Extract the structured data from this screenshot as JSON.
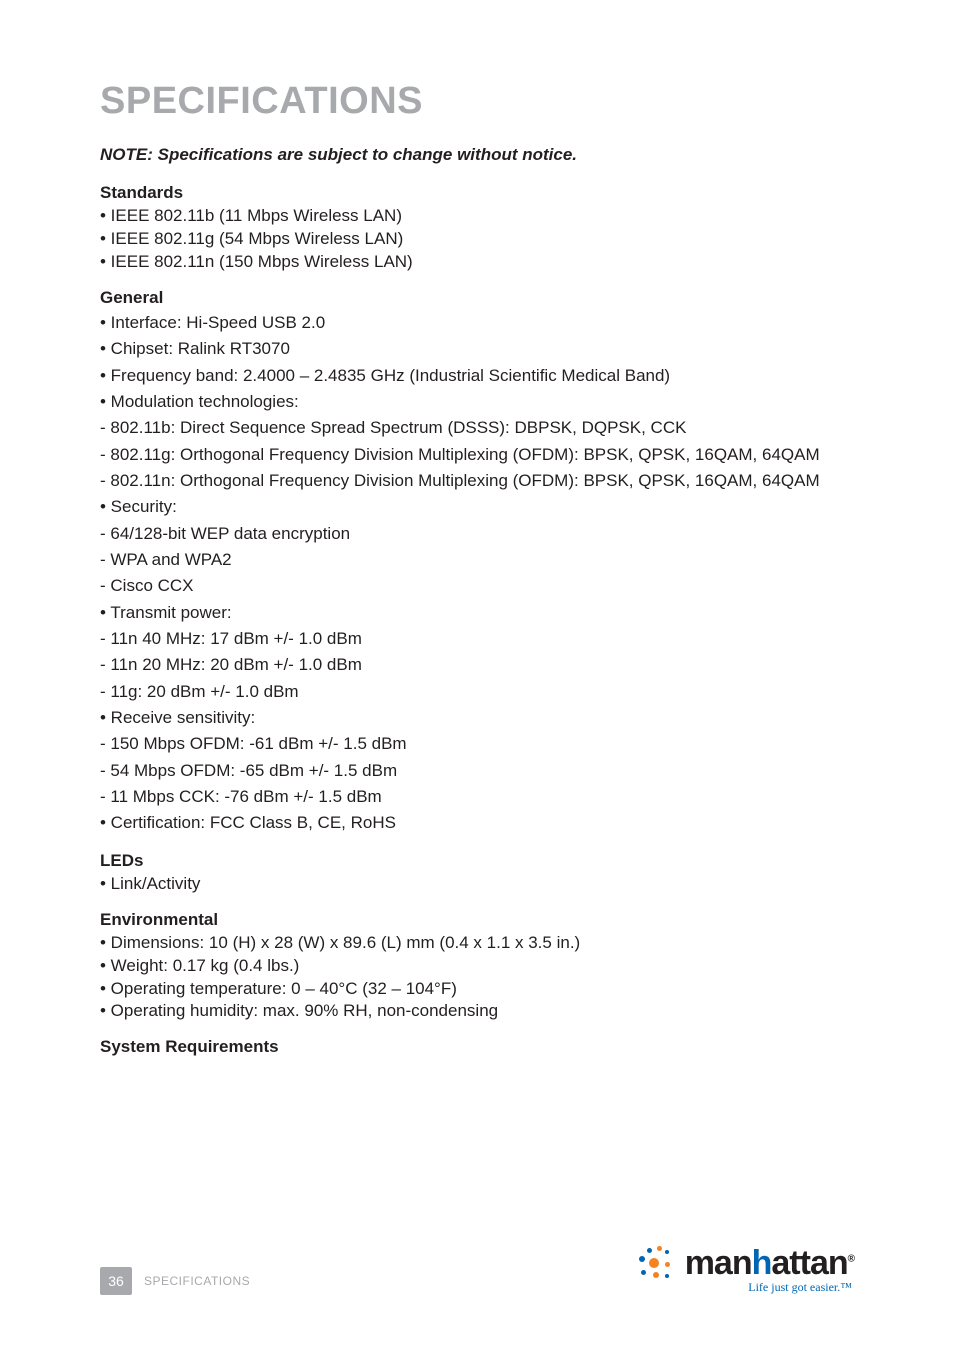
{
  "title": "SPECIFICATIONS",
  "note": "NOTE: Specifications are subject to change without notice.",
  "sections": {
    "standards": {
      "heading": "Standards",
      "lines": [
        "• IEEE 802.11b (11 Mbps Wireless LAN)",
        "• IEEE 802.11g (54 Mbps Wireless LAN)",
        "• IEEE 802.11n (150 Mbps Wireless LAN)"
      ]
    },
    "general": {
      "heading": "General",
      "lines": [
        "• Interface: Hi-Speed USB 2.0",
        "• Chipset: Ralink RT3070",
        "• Frequency band: 2.4000 – 2.4835 GHz (Industrial Scientific Medical Band)",
        "• Modulation technologies:",
        "- 802.11b: Direct Sequence Spread Spectrum (DSSS): DBPSK, DQPSK, CCK",
        "- 802.11g: Orthogonal Frequency Division Multiplexing (OFDM): BPSK, QPSK, 16QAM, 64QAM",
        "- 802.11n: Orthogonal Frequency Division Multiplexing (OFDM): BPSK, QPSK, 16QAM, 64QAM",
        "• Security:",
        "- 64/128-bit WEP data encryption",
        "- WPA and WPA2",
        "- Cisco CCX",
        "• Transmit power:",
        "- 11n 40 MHz: 17 dBm +/- 1.0 dBm",
        "- 11n 20 MHz: 20 dBm +/- 1.0 dBm",
        "- 11g: 20 dBm +/- 1.0 dBm",
        "• Receive sensitivity:",
        "- 150 Mbps OFDM: -61 dBm +/- 1.5 dBm",
        "- 54 Mbps OFDM: -65 dBm +/- 1.5 dBm",
        "- 11 Mbps CCK: -76 dBm +/- 1.5 dBm",
        "• Certification: FCC Class B, CE, RoHS"
      ]
    },
    "leds": {
      "heading": "LEDs",
      "lines": [
        "• Link/Activity"
      ]
    },
    "environmental": {
      "heading": "Environmental",
      "lines": [
        "• Dimensions: 10 (H) x 28 (W) x 89.6 (L) mm (0.4 x 1.1 x 3.5 in.)",
        "• Weight: 0.17 kg (0.4 lbs.)",
        "• Operating temperature: 0 – 40°C (32 – 104°F)",
        "• Operating humidity: max. 90% RH, non-condensing"
      ]
    },
    "sysreq": {
      "heading": "System Requirements"
    }
  },
  "footer": {
    "page_number": "36",
    "section_label": "SPECIFICATIONS"
  },
  "logo": {
    "brand_man": "man",
    "brand_h": "h",
    "brand_attan": "attan",
    "reg": "®",
    "tagline": "Life just got easier.™"
  }
}
